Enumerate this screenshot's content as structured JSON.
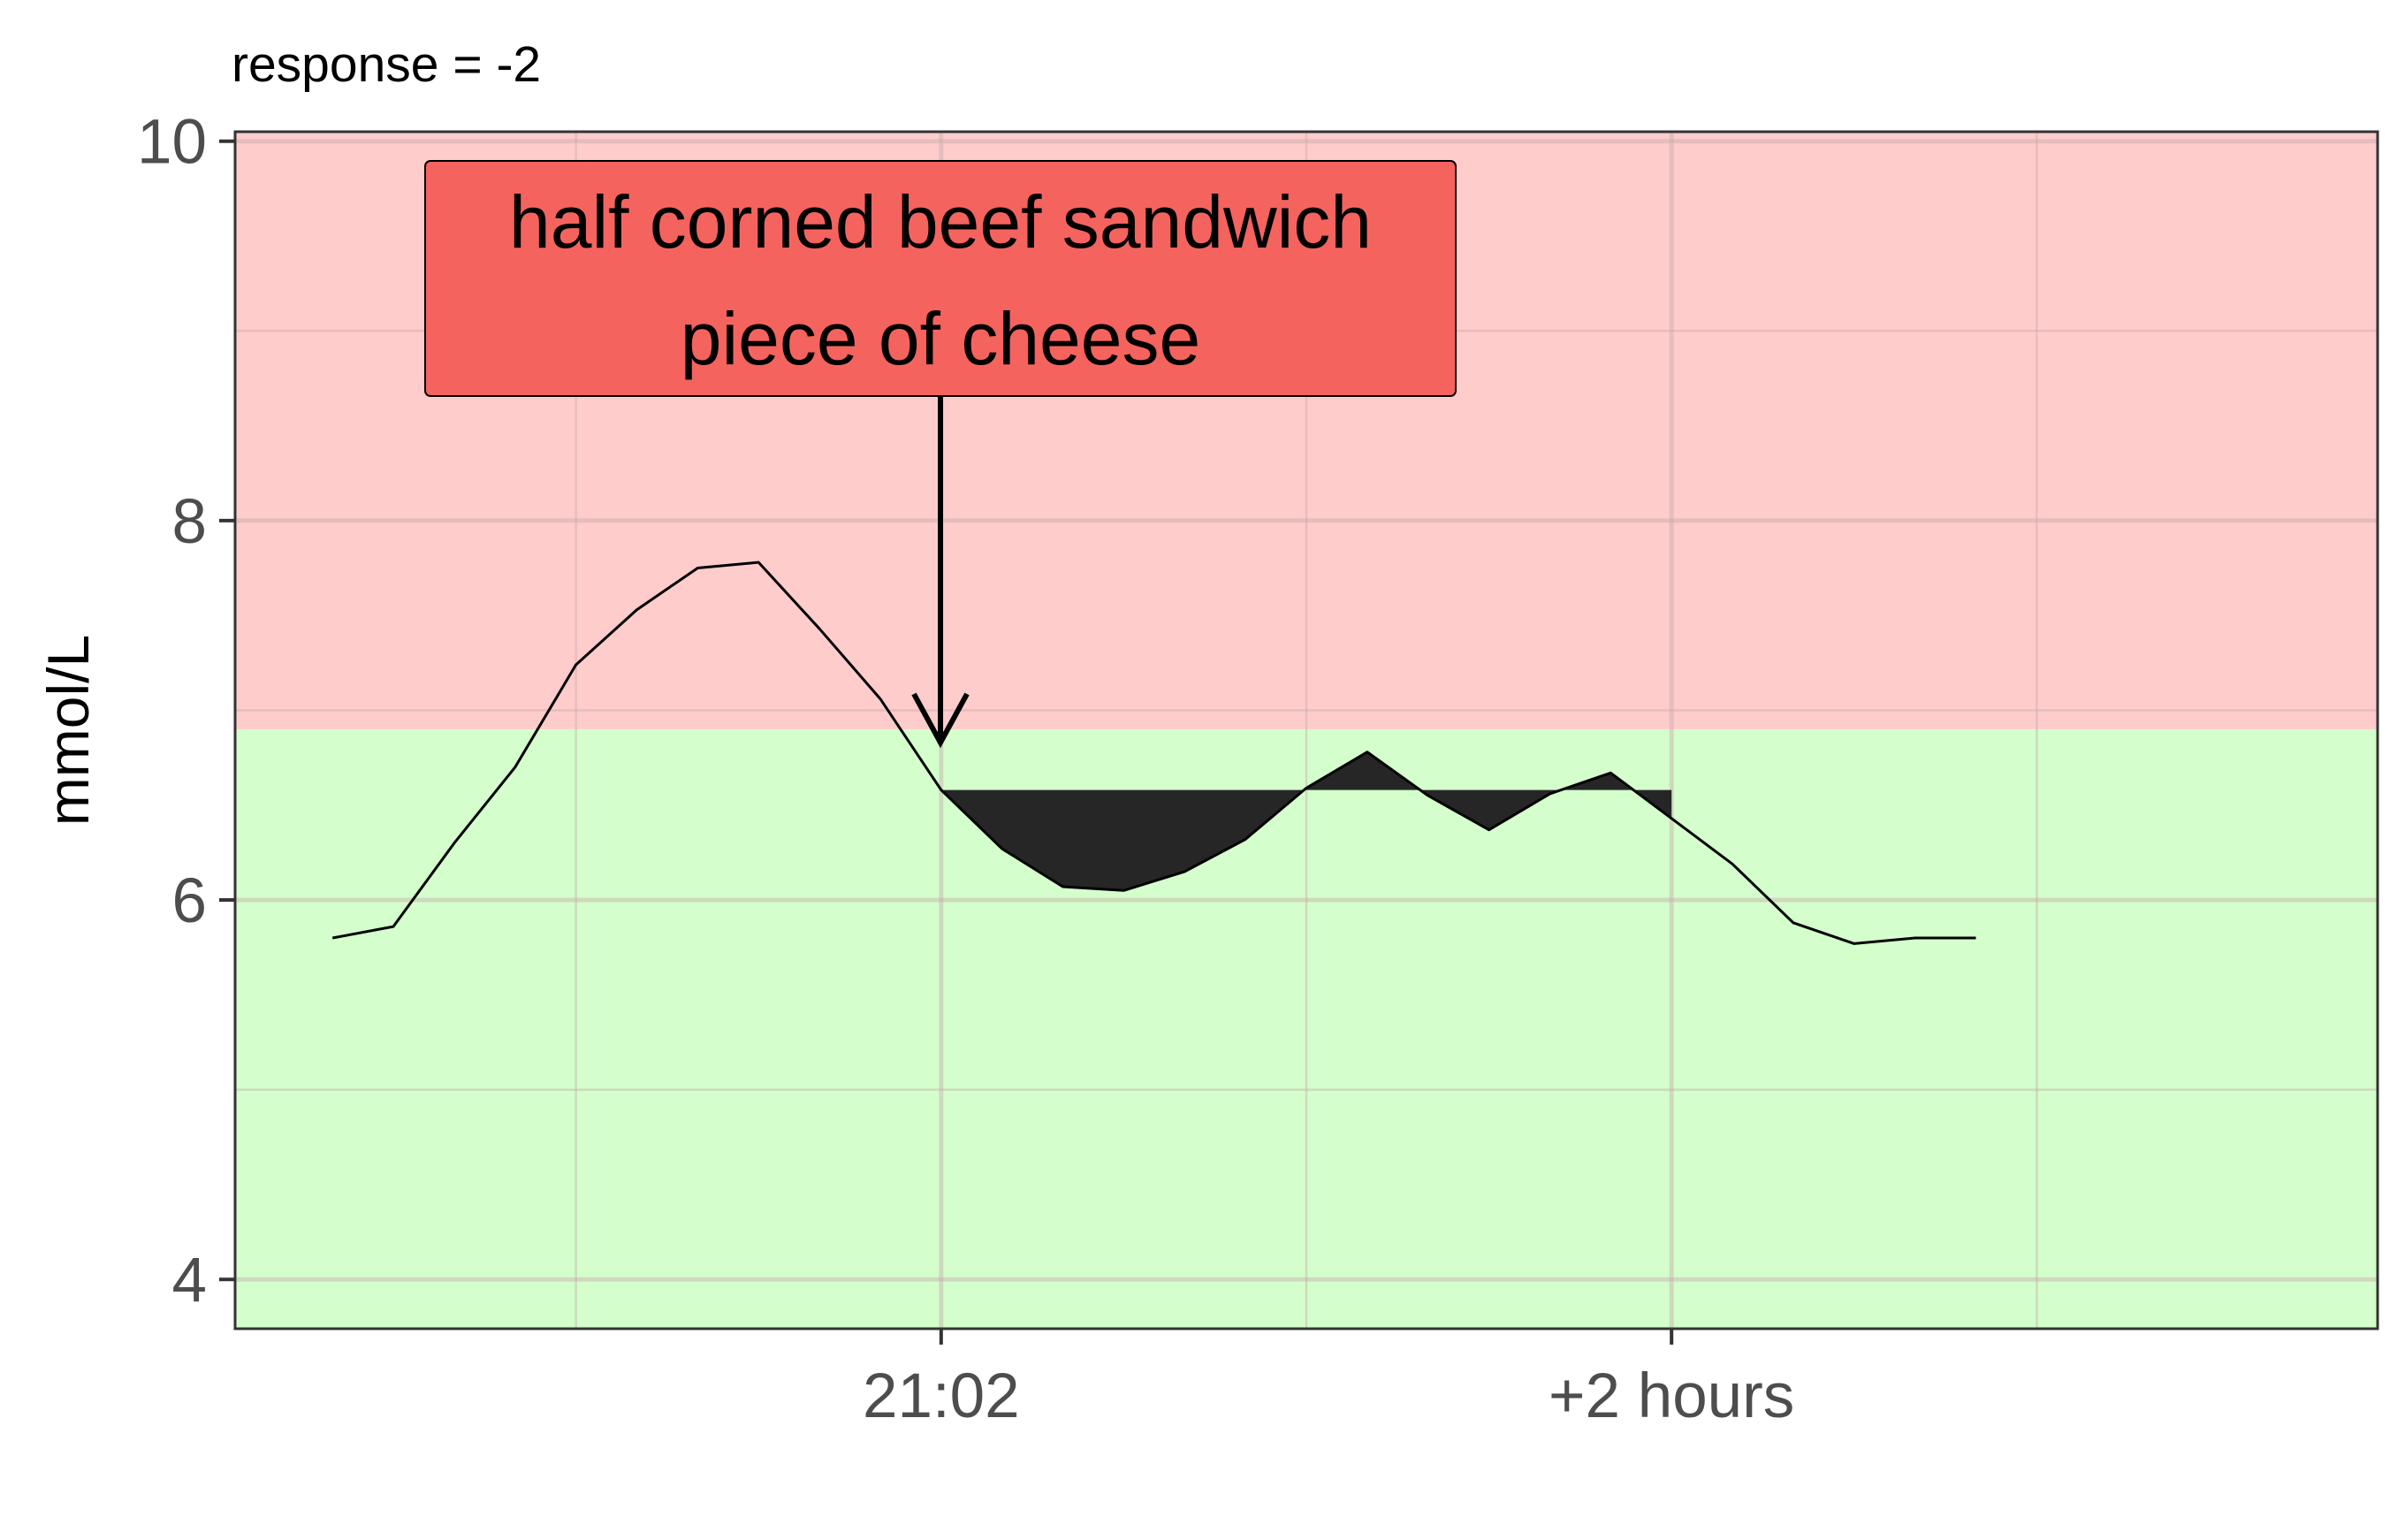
{
  "chart_data": {
    "type": "line",
    "subtitle": "response = -2",
    "ylabel": "mmol/L",
    "xlabel": "",
    "ylim": [
      3.74,
      10.05
    ],
    "y_ticks": [
      4,
      6,
      8,
      10
    ],
    "x_ticks": [
      {
        "x": 0,
        "label": "21:02"
      },
      {
        "x": 120,
        "label": "+2 hours"
      }
    ],
    "xlim": [
      -116,
      236
    ],
    "grid": true,
    "zones": [
      {
        "name": "high",
        "y_from": 6.9,
        "y_to": 10.05,
        "color": "#ffcccc"
      },
      {
        "name": "normal",
        "y_from": 3.74,
        "y_to": 6.9,
        "color": "#d4ffcc"
      }
    ],
    "series": [
      {
        "color": "#000000",
        "x": [
          -100,
          -90,
          -80,
          -70,
          -60,
          -50,
          -40,
          -30,
          -20,
          -10,
          0,
          10,
          20,
          30,
          40,
          50,
          60,
          70,
          80,
          90,
          100,
          110,
          120,
          130,
          140,
          150,
          160,
          170
        ],
        "y": [
          5.8,
          5.86,
          6.3,
          6.7,
          7.24,
          7.53,
          7.75,
          7.78,
          7.43,
          7.06,
          6.58,
          6.27,
          6.07,
          6.05,
          6.15,
          6.32,
          6.59,
          6.78,
          6.55,
          6.37,
          6.56,
          6.67,
          6.43,
          6.19,
          5.88,
          5.77,
          5.8,
          5.8
        ]
      }
    ],
    "baseline": {
      "y": 6.58,
      "x_from": 0,
      "x_to": 120,
      "fill": "#262626"
    },
    "annotation": {
      "lines": [
        "half corned beef sandwich",
        "piece of cheese"
      ],
      "fill": "#f5635f",
      "arrow_x": 0,
      "arrow_y": 6.83
    },
    "colors": {
      "panel_border": "#333333",
      "grid_major": "#e6c0c0",
      "tick_label": "#4d4d4d"
    }
  }
}
